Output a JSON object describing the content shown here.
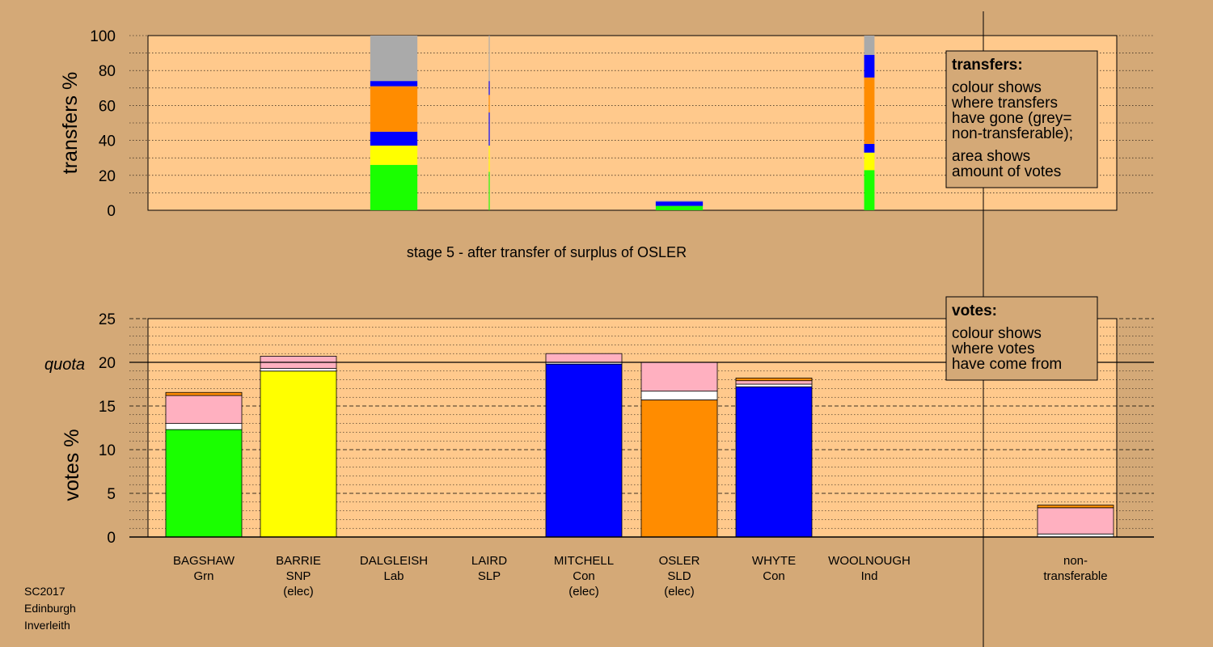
{
  "colors": {
    "background": "#d4a977",
    "plot_bg": "#ffc98c",
    "Grn": "#1aff00",
    "SNP": "#ffff00",
    "Con": "#0000ff",
    "SLD": "#ff8c00",
    "transfer": "#ffb0c0",
    "nontransferable": "#aaaaaa",
    "white": "#ffffff"
  },
  "chart_data": [
    {
      "type": "bar",
      "stacked": true,
      "title": "stage 5 - after transfer of surplus of OSLER",
      "ylabel": "transfers %",
      "ylim": [
        0,
        100
      ],
      "yticks": [
        0,
        20,
        40,
        60,
        80,
        100
      ],
      "grid": "dotted",
      "legend": {
        "title": "transfers:",
        "lines": [
          "colour shows",
          "where transfers",
          "have gone (grey=",
          "non-transferable);",
          "area shows",
          "amount of votes"
        ]
      },
      "bars": [
        {
          "column": "DALGLEISH",
          "width": 1.0,
          "segments": [
            {
              "color": "Grn",
              "value": 26
            },
            {
              "color": "SNP",
              "value": 11
            },
            {
              "color": "Con",
              "value": 8
            },
            {
              "color": "SLD",
              "value": 26
            },
            {
              "color": "Con",
              "value": 3
            },
            {
              "color": "nontransferable",
              "value": 26
            }
          ]
        },
        {
          "column": "LAIRD",
          "width": 0.02,
          "segments": [
            {
              "color": "Grn",
              "value": 22
            },
            {
              "color": "SNP",
              "value": 15
            },
            {
              "color": "Con",
              "value": 19
            },
            {
              "color": "SLD",
              "value": 10
            },
            {
              "color": "Con",
              "value": 8
            },
            {
              "color": "nontransferable",
              "value": 26
            }
          ]
        },
        {
          "column": "OSLER",
          "width": 1.0,
          "segments": [
            {
              "color": "Grn",
              "value": 2.5
            },
            {
              "color": "Con",
              "value": 2.5
            },
            {
              "color": "nontransferable",
              "value": 0.5
            }
          ]
        },
        {
          "column": "WOOLNOUGH",
          "width": 0.22,
          "segments": [
            {
              "color": "Grn",
              "value": 23
            },
            {
              "color": "SNP",
              "value": 10
            },
            {
              "color": "Con",
              "value": 5
            },
            {
              "color": "SLD",
              "value": 38
            },
            {
              "color": "Con",
              "value": 13
            },
            {
              "color": "nontransferable",
              "value": 11
            }
          ]
        }
      ]
    },
    {
      "type": "bar",
      "stacked": true,
      "ylabel": "votes %",
      "ylim": [
        0,
        25
      ],
      "yticks": [
        0,
        5,
        10,
        15,
        20,
        25
      ],
      "quota": 20,
      "quota_label": "quota",
      "grid": "dashed",
      "legend": {
        "title": "votes:",
        "lines": [
          "colour shows",
          "where votes",
          "have come from"
        ]
      },
      "candidates": [
        {
          "name": "BAGSHAW",
          "party": "Grn",
          "status": "",
          "segments": [
            {
              "color": "Grn",
              "value": 12.3
            },
            {
              "color": "white",
              "value": 0.7
            },
            {
              "color": "transfer",
              "value": 3.2
            },
            {
              "color": "SLD",
              "value": 0.35
            }
          ]
        },
        {
          "name": "BARRIE",
          "party": "SNP",
          "status": "(elec)",
          "segments": [
            {
              "color": "SNP",
              "value": 19.0
            },
            {
              "color": "white",
              "value": 0.3
            },
            {
              "color": "transfer",
              "value": 1.4
            }
          ]
        },
        {
          "name": "DALGLEISH",
          "party": "Lab",
          "status": "",
          "segments": []
        },
        {
          "name": "LAIRD",
          "party": "SLP",
          "status": "",
          "segments": []
        },
        {
          "name": "MITCHELL",
          "party": "Con",
          "status": "(elec)",
          "segments": [
            {
              "color": "Con",
              "value": 19.8
            },
            {
              "color": "white",
              "value": 0.2
            },
            {
              "color": "transfer",
              "value": 1.0
            }
          ]
        },
        {
          "name": "OSLER",
          "party": "SLD",
          "status": "(elec)",
          "segments": [
            {
              "color": "SLD",
              "value": 15.7
            },
            {
              "color": "white",
              "value": 1.0
            },
            {
              "color": "transfer",
              "value": 3.3
            }
          ]
        },
        {
          "name": "WHYTE",
          "party": "Con",
          "status": "",
          "segments": [
            {
              "color": "Con",
              "value": 17.2
            },
            {
              "color": "white",
              "value": 0.3
            },
            {
              "color": "transfer",
              "value": 0.4
            },
            {
              "color": "SLD",
              "value": 0.3
            }
          ]
        },
        {
          "name": "WOOLNOUGH",
          "party": "Ind",
          "status": "",
          "segments": []
        }
      ],
      "nontransferable": {
        "label_lines": [
          "non-",
          "transferable"
        ],
        "segments": [
          {
            "color": "white",
            "value": 0.35
          },
          {
            "color": "transfer",
            "value": 3.0
          },
          {
            "color": "SLD",
            "value": 0.3
          }
        ]
      }
    }
  ],
  "footer": {
    "lines": [
      "SC2017",
      "Edinburgh",
      "Inverleith"
    ]
  }
}
